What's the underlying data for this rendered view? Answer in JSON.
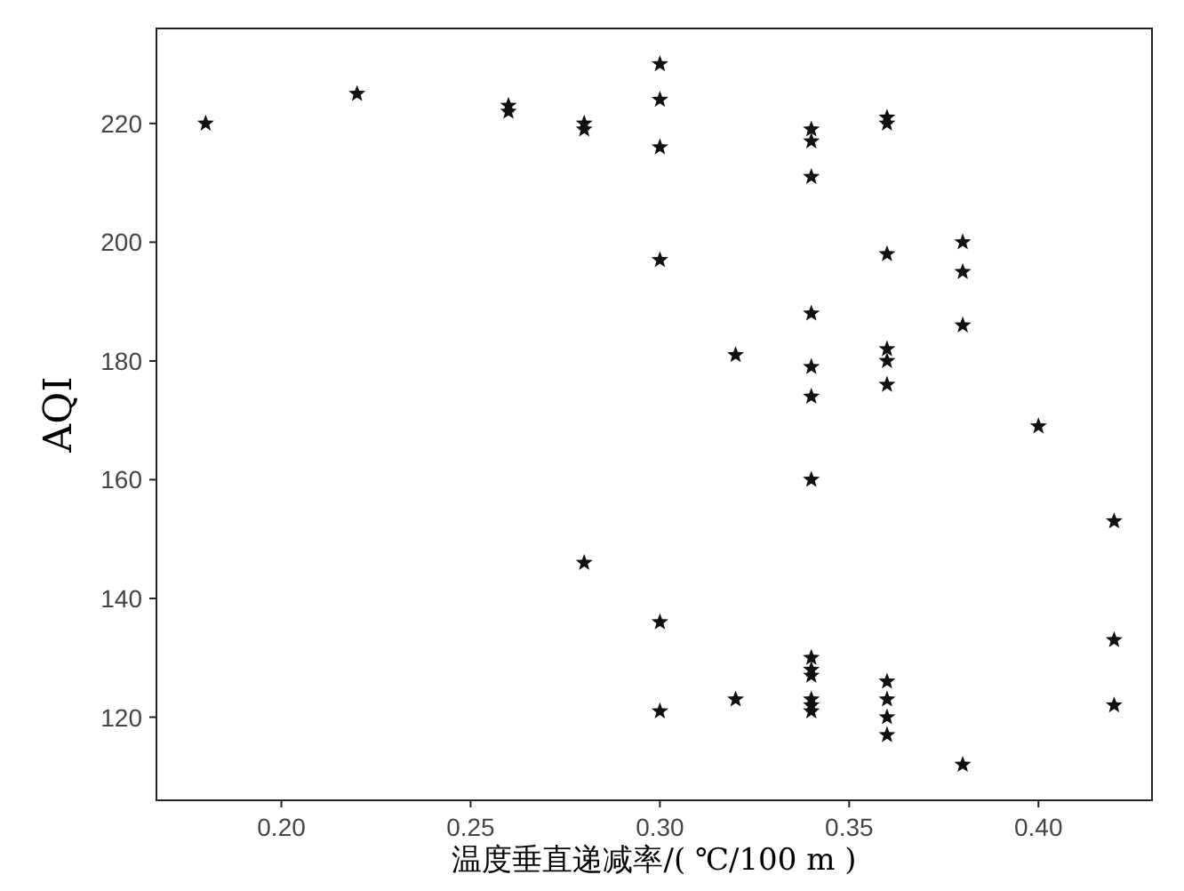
{
  "chart_data": {
    "type": "scatter",
    "xlabel": "温度垂直递减率/( ℃/100 m )",
    "ylabel": "AQI",
    "marker": "star",
    "grid": false,
    "xlim": [
      0.167,
      0.43
    ],
    "ylim": [
      106,
      236
    ],
    "xticks": [
      {
        "value": 0.2,
        "label": "0.20"
      },
      {
        "value": 0.25,
        "label": "0.25"
      },
      {
        "value": 0.3,
        "label": "0.30"
      },
      {
        "value": 0.35,
        "label": "0.35"
      },
      {
        "value": 0.4,
        "label": "0.40"
      }
    ],
    "yticks": [
      120,
      140,
      160,
      180,
      200,
      220
    ],
    "series": [
      {
        "color": "#111111",
        "x": [
          0.18,
          0.22,
          0.26,
          0.26,
          0.28,
          0.28,
          0.28,
          0.3,
          0.3,
          0.3,
          0.3,
          0.3,
          0.3,
          0.32,
          0.32,
          0.34,
          0.34,
          0.34,
          0.34,
          0.34,
          0.34,
          0.34,
          0.34,
          0.34,
          0.34,
          0.34,
          0.34,
          0.34,
          0.36,
          0.36,
          0.36,
          0.36,
          0.36,
          0.36,
          0.36,
          0.36,
          0.36,
          0.36,
          0.38,
          0.38,
          0.38,
          0.38,
          0.4,
          0.42,
          0.42,
          0.42
        ],
        "values": [
          220,
          225,
          223,
          222,
          220,
          219,
          146,
          230,
          224,
          216,
          197,
          136,
          121,
          181,
          123,
          219,
          217,
          211,
          188,
          179,
          174,
          160,
          130,
          128,
          127,
          123,
          122,
          121,
          221,
          220,
          198,
          182,
          180,
          176,
          126,
          123,
          120,
          117,
          200,
          195,
          186,
          112,
          169,
          153,
          133,
          122
        ]
      }
    ]
  }
}
